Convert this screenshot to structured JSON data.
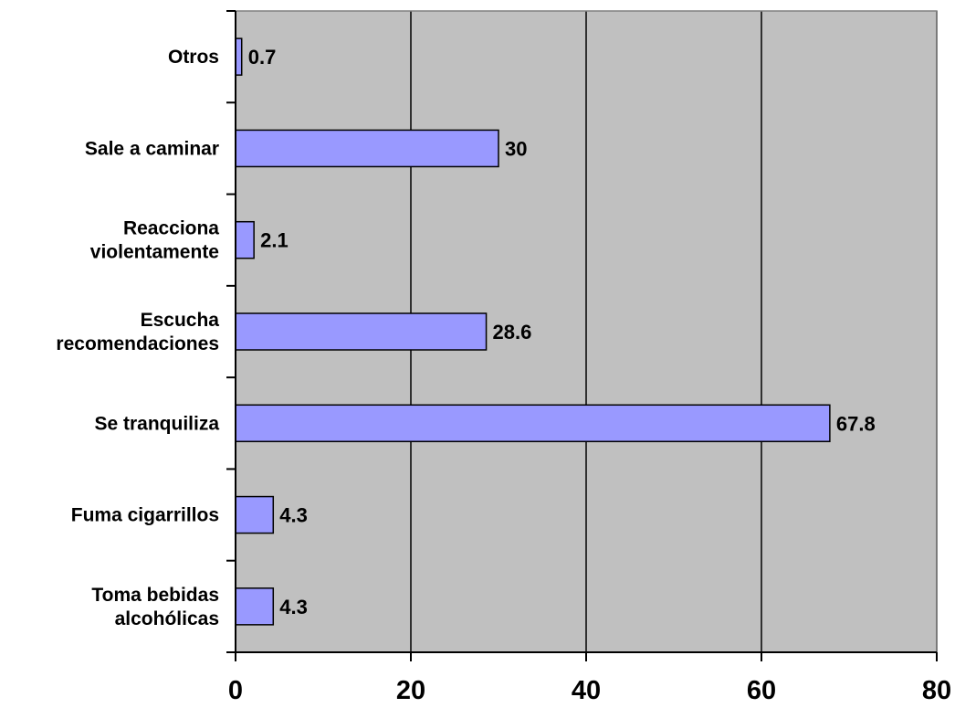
{
  "chart_data": {
    "type": "bar",
    "orientation": "horizontal",
    "categories": [
      [
        "Otros"
      ],
      [
        "Sale a caminar"
      ],
      [
        "Reacciona",
        "violentamente"
      ],
      [
        "Escucha",
        "recomendaciones"
      ],
      [
        "Se tranquiliza"
      ],
      [
        "Fuma cigarrillos"
      ],
      [
        "Toma bebidas",
        "alcohólicas"
      ]
    ],
    "values": [
      0.7,
      30,
      2.1,
      28.6,
      67.8,
      4.3,
      4.3
    ],
    "value_labels": [
      "0.7",
      "30",
      "2.1",
      "28.6",
      "67.8",
      "4.3",
      "4.3"
    ],
    "xlim": [
      0,
      80
    ],
    "x_ticks": [
      0,
      20,
      40,
      60,
      80
    ],
    "x_tick_labels": [
      "0",
      "20",
      "40",
      "60",
      "80"
    ],
    "grid": true,
    "legend": "none",
    "colors": {
      "bar_fill": "#9999FF",
      "bar_stroke": "#000000",
      "plot_background": "#C0C0C0",
      "gridline": "#000000"
    }
  }
}
